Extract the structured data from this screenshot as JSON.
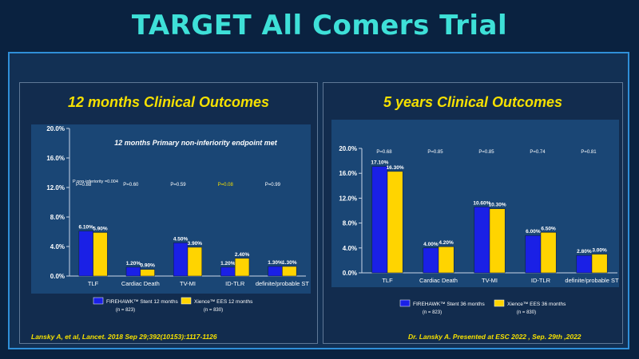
{
  "page": {
    "title": "TARGET All Comers Trial"
  },
  "colors": {
    "firehawk": "#1a20e6",
    "xience": "#ffd400",
    "title": "#3ee0d8",
    "accent": "#f5e000"
  },
  "chart_data": [
    {
      "type": "bar",
      "title": "12 months Clinical Outcomes",
      "subtitle": "12 months Primary non-inferiority endpoint met",
      "categories": [
        "TLF",
        "Cardiac Death",
        "TV-MI",
        "ID-TLR",
        "definite/probable ST"
      ],
      "ylim": [
        0,
        20
      ],
      "yticks": [
        "0.0%",
        "4.0%",
        "8.0%",
        "12.0%",
        "16.0%",
        "20.0%"
      ],
      "grid": false,
      "legend_position": "bottom",
      "p_values": [
        "P=0.88",
        "P=0.60",
        "P=0.59",
        "P=0.08",
        "P=0.99"
      ],
      "p_noninferiority": "P non-inferiority =0.004",
      "series": [
        {
          "name": "FIREHAWK™ Stent 12 months",
          "n": "(n = 823)",
          "values": [
            6.1,
            1.2,
            4.5,
            1.2,
            1.3
          ],
          "labels": [
            "6.10%",
            "1.20%",
            "4.50%",
            "1.20%",
            "1.30%"
          ]
        },
        {
          "name": "Xience™ EES 12 months",
          "n": "(n = 830)",
          "values": [
            5.9,
            0.9,
            3.9,
            2.4,
            1.3
          ],
          "labels": [
            "5.90%",
            "0.90%",
            "3.90%",
            "2.40%",
            "1.30%"
          ]
        }
      ],
      "citation": "Lansky A, et al, Lancet. 2018 Sep 29;392(10153):1117-1126"
    },
    {
      "type": "bar",
      "title": "5 years Clinical Outcomes",
      "categories": [
        "TLF",
        "Cardiac Death",
        "TV-MI",
        "ID-TLR",
        "definite/probable ST"
      ],
      "ylim": [
        0,
        20
      ],
      "yticks": [
        "0.0%",
        "4.0%",
        "8.0%",
        "12.0%",
        "16.0%",
        "20.0%"
      ],
      "grid": false,
      "legend_position": "bottom",
      "p_values": [
        "P=0.68",
        "P=0.85",
        "P=0.85",
        "P=0.74",
        "P=0.81"
      ],
      "series": [
        {
          "name": "FIREHAWK™ Stent 36 months",
          "n": "(n = 823)",
          "values": [
            17.1,
            4.0,
            10.6,
            6.0,
            2.8
          ],
          "labels": [
            "17.10%",
            "4.00%",
            "10.60%",
            "6.00%",
            "2.80%"
          ]
        },
        {
          "name": "Xience™ EES 36 months",
          "n": "(n = 830)",
          "values": [
            16.3,
            4.2,
            10.3,
            6.5,
            3.0
          ],
          "labels": [
            "16.30%",
            "4.20%",
            "10.30%",
            "6.50%",
            "3.00%"
          ]
        }
      ],
      "citation": "Dr. Lansky A. Presented at ESC 2022 , Sep. 29th ,2022"
    }
  ]
}
